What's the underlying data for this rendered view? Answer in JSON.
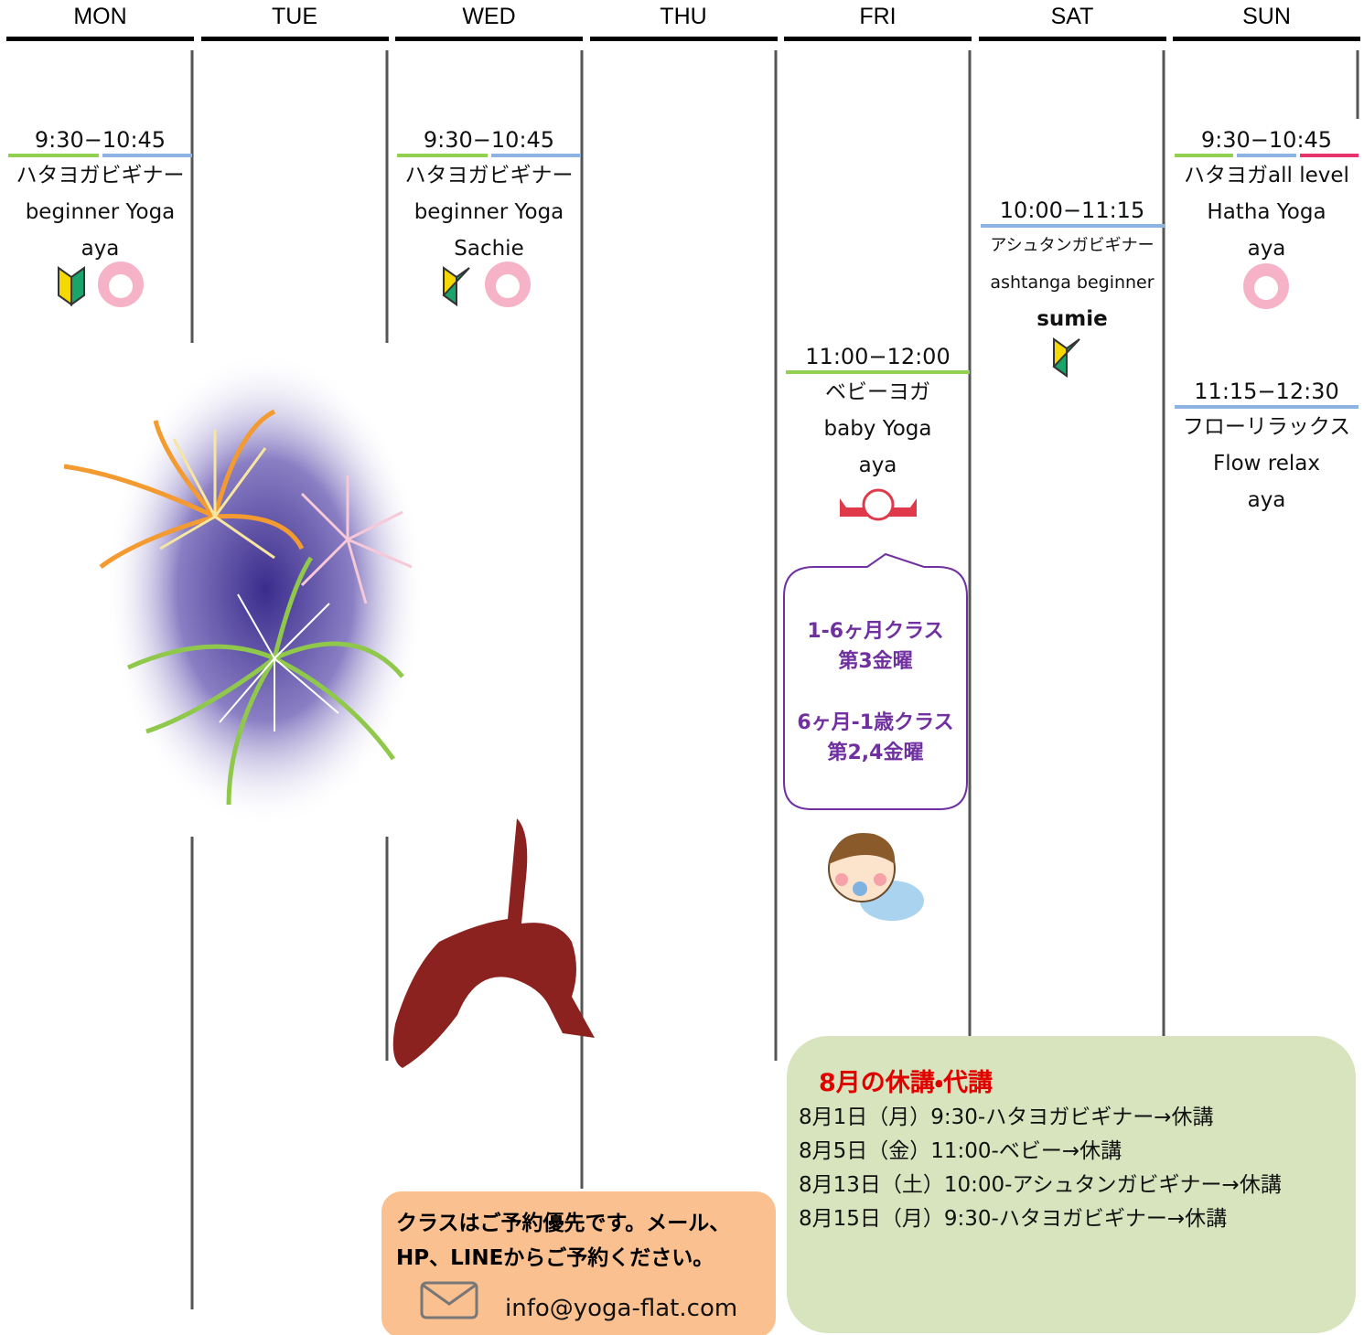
{
  "days": [
    {
      "label": "MON",
      "classes": [
        {
          "time": "9:30−10:45",
          "name": "ハタヨガビギナー",
          "name_en": "beginner Yoga",
          "teacher": "aya"
        }
      ]
    },
    {
      "label": "TUE"
    },
    {
      "label": "WED",
      "classes": [
        {
          "time": "9:30−10:45",
          "name": "ハタヨガビギナー",
          "name_en": "beginner Yoga",
          "teacher": "Sachie"
        }
      ]
    },
    {
      "label": "THU"
    },
    {
      "label": "FRI",
      "classes": [
        {
          "time": "11:00−12:00",
          "name": "ベビーヨガ",
          "name_en": "baby Yoga",
          "teacher": "aya"
        }
      ]
    },
    {
      "label": "SAT",
      "classes": [
        {
          "time": "10:00−11:15",
          "name": "アシュタンガビギナー",
          "name_en": "ashtanga beginner",
          "teacher": "sumie"
        }
      ]
    },
    {
      "label": "SUN",
      "classes": [
        {
          "time": "9:30−10:45",
          "name": "ハタヨガall level",
          "name_en": "Hatha Yoga",
          "teacher": "aya"
        },
        {
          "time": "11:15−12:30",
          "name": "フローリラックス",
          "name_en": "Flow relax",
          "teacher": "aya"
        }
      ]
    }
  ],
  "baby_note": [
    "1-6ヶ月クラス",
    "第3金曜",
    "6ヶ月-1歳クラス",
    "第2,4金曜"
  ],
  "reservation": {
    "lines": [
      "クラスはご予約優先です。メール、",
      "HP、LINEからご予約ください。"
    ],
    "email": "info@yoga-flat.com"
  },
  "notice": {
    "title": "8月の休講・代講",
    "items": [
      "8月1日（月）9:30-ハタヨガビギナー→休講",
      "8月5日（金）11:00-ベビー→休講",
      "8月13日（土）10:00-アシュタンガビギナー→休講",
      "8月15日（月）9:30-ハタヨガビギナー→休講"
    ]
  }
}
